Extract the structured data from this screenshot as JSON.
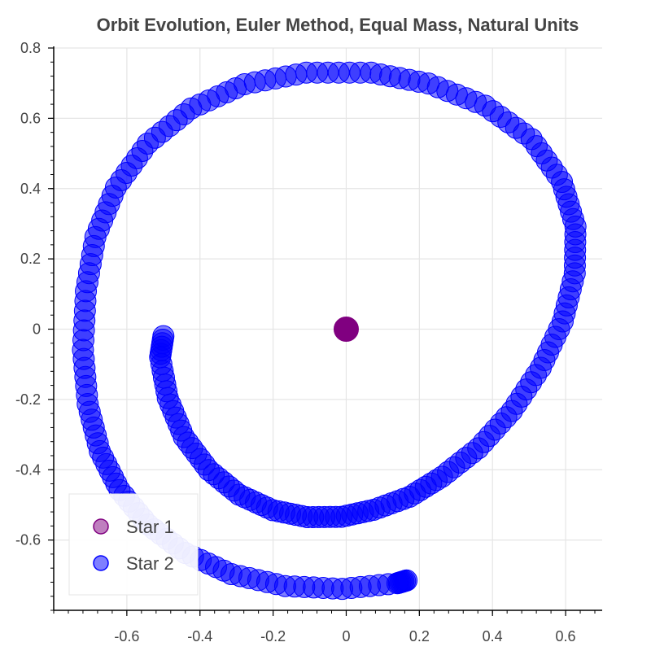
{
  "chart_data": {
    "type": "scatter",
    "title": "Orbit Evolution, Euler Method, Equal Mass, Natural Units",
    "xlabel": "",
    "ylabel": "",
    "xlim": [
      -0.8,
      0.7
    ],
    "ylim": [
      -0.8,
      0.8
    ],
    "x_ticks": [
      "-0.6",
      "-0.4",
      "-0.2",
      "0",
      "0.2",
      "0.4",
      "0.6"
    ],
    "y_ticks": [
      "0.8",
      "0.6",
      "0.4",
      "0.2",
      "0",
      "-0.2",
      "-0.4",
      "-0.6"
    ],
    "x_tick_values": [
      -0.6,
      -0.4,
      -0.2,
      0,
      0.2,
      0.4,
      0.6
    ],
    "y_tick_values": [
      0.8,
      0.6,
      0.4,
      0.2,
      0,
      -0.2,
      -0.4,
      -0.6
    ],
    "grid": true,
    "legend_position": "bottom-left",
    "legend": [
      {
        "label": "Star 1",
        "color": "#800080"
      },
      {
        "label": "Star 2",
        "color": "#0000ff"
      }
    ],
    "series": [
      {
        "name": "Star 1",
        "color": "#800080",
        "x": [
          0.0
        ],
        "y": [
          0.0
        ]
      },
      {
        "name": "Star 2",
        "color": "#0000ff",
        "x": [
          -0.5,
          -0.509,
          -0.488,
          -0.444,
          -0.376,
          -0.293,
          -0.201,
          -0.106,
          -0.013,
          0.075,
          0.173,
          0.262,
          0.361,
          0.453,
          0.532,
          0.592,
          0.625,
          0.627,
          0.59,
          0.507,
          0.38,
          0.225,
          0.068,
          -0.109,
          -0.278,
          -0.424,
          -0.543,
          -0.63,
          -0.686,
          -0.712,
          -0.72,
          -0.707,
          -0.674,
          -0.62,
          -0.542,
          -0.44,
          -0.314,
          -0.167,
          -0.011,
          0.14,
          0.165
        ],
        "y": [
          -0.02,
          -0.08,
          -0.196,
          -0.307,
          -0.401,
          -0.471,
          -0.515,
          -0.535,
          -0.534,
          -0.514,
          -0.477,
          -0.42,
          -0.339,
          -0.233,
          -0.11,
          0.022,
          0.159,
          0.292,
          0.419,
          0.541,
          0.636,
          0.699,
          0.73,
          0.73,
          0.697,
          0.628,
          0.528,
          0.403,
          0.262,
          0.108,
          -0.059,
          -0.213,
          -0.347,
          -0.458,
          -0.556,
          -0.637,
          -0.697,
          -0.731,
          -0.739,
          -0.723,
          -0.715
        ]
      }
    ]
  }
}
